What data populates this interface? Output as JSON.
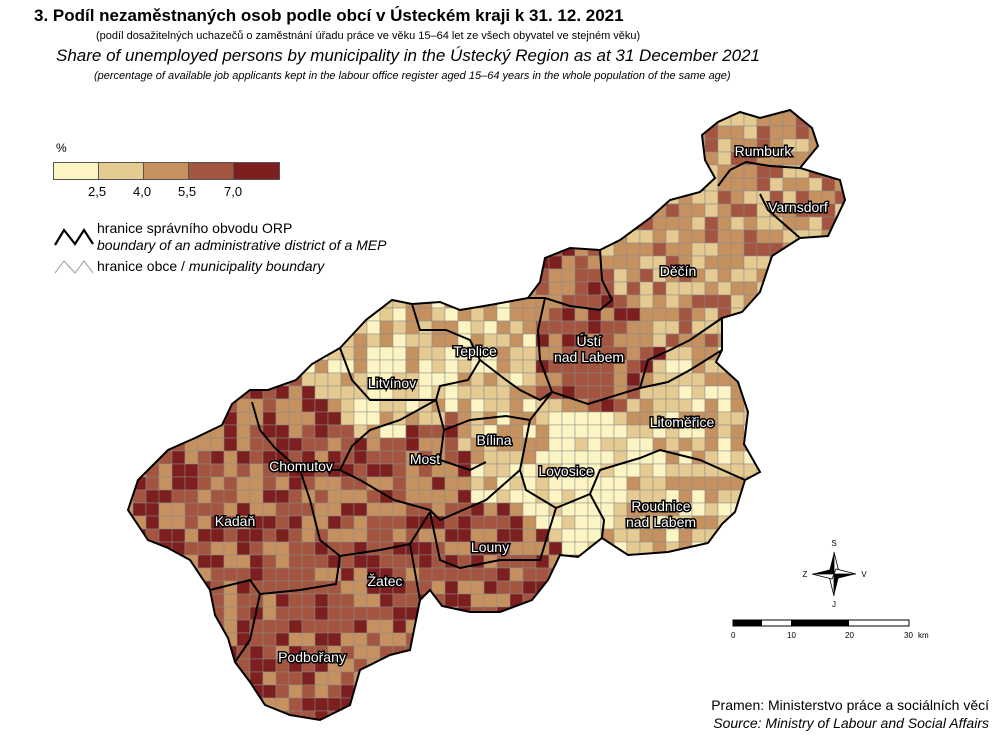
{
  "title": {
    "cz": "3. Podíl nezaměstnaných osob podle obcí v Ústeckém kraji k 31. 12. 2021",
    "cz_sub": "(podíl dosažitelných uchazečů o zaměstnání úřadu práce ve věku 15–64 let ze všech obyvatel ve stejném věku)",
    "en": "Share of unemployed persons by municipality in the Ústecký Region as at 31 December 2021",
    "en_sub": "(percentage of available job applicants kept in the labour office register aged 15–64 years in the whole population of the same age)"
  },
  "legend": {
    "unit": "%",
    "thresholds": [
      "2,5",
      "4,0",
      "5,5",
      "7,0"
    ],
    "colors": [
      "#fcf5c3",
      "#e5cb92",
      "#c5925f",
      "#a4553f",
      "#7e1f1f"
    ],
    "orp_cz": "hranice správního obvodu ORP",
    "orp_en": "boundary of an administrative district of a MEP",
    "muni_cz": "hranice obce / ",
    "muni_en": "municipality boundary"
  },
  "districts": [
    {
      "name": "Rumburk",
      "level": 2
    },
    {
      "name": "Varnsdorf",
      "level": 2
    },
    {
      "name": "Děčín",
      "level": 2
    },
    {
      "name": "Ústí",
      "level": 3
    },
    {
      "name": "nad Labem",
      "level": 3
    },
    {
      "name": "Teplice",
      "level": 1
    },
    {
      "name": "Litvínov",
      "level": 1
    },
    {
      "name": "Bílina",
      "level": 1
    },
    {
      "name": "Litoměřice",
      "level": 1
    },
    {
      "name": "Chomutov",
      "level": 3
    },
    {
      "name": "Most",
      "level": 3
    },
    {
      "name": "Lovosice",
      "level": 0
    },
    {
      "name": "Roudnice",
      "level": 1
    },
    {
      "name": "nad Labem",
      "level": 1
    },
    {
      "name": "Kadaň",
      "level": 3
    },
    {
      "name": "Louny",
      "level": 3
    },
    {
      "name": "Žatec",
      "level": 3
    },
    {
      "name": "Podbořany",
      "level": 3
    }
  ],
  "compass": {
    "n": "S",
    "s": "J",
    "w": "Z",
    "e": "V"
  },
  "scalebar": {
    "labels": [
      "0",
      "10",
      "20",
      "30"
    ],
    "unit": "km"
  },
  "source": {
    "cz": "Pramen: Ministerstvo práce a sociálních věcí",
    "en": "Source: Ministry of Labour and Social Affairs"
  }
}
